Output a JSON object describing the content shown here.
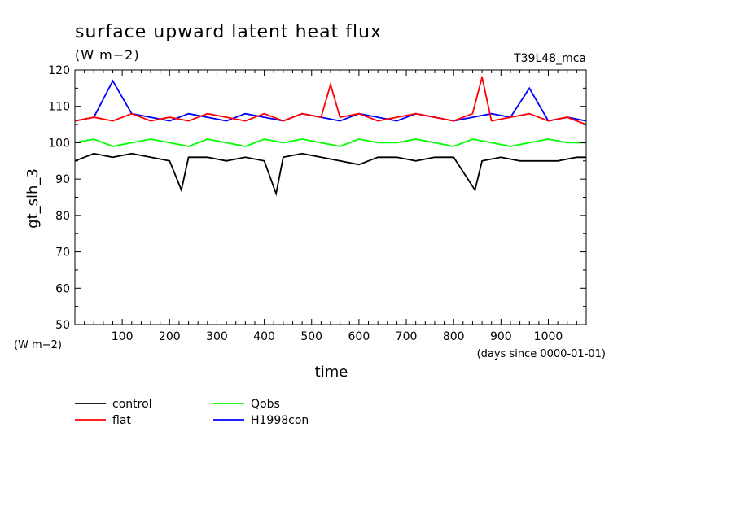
{
  "chart_data": {
    "type": "line",
    "title": "surface upward latent heat flux",
    "units": "(W m−2)",
    "tag": "T39L48_mca",
    "xlabel": "time",
    "xlabel_units": "(days since 0000-01-01)",
    "ylabel": "gt_slh_3",
    "ylabel_units": "(W m−2)",
    "xlim": [
      0,
      1080
    ],
    "ylim": [
      50,
      120
    ],
    "xticks": [
      100,
      200,
      300,
      400,
      500,
      600,
      700,
      800,
      900,
      1000
    ],
    "yticks": [
      50,
      60,
      70,
      80,
      90,
      100,
      110,
      120
    ],
    "grid": false,
    "legend_position": "bottom-left",
    "series": [
      {
        "name": "control",
        "color": "#000000",
        "x": [
          0,
          40,
          80,
          120,
          160,
          200,
          225,
          240,
          280,
          320,
          360,
          400,
          425,
          440,
          480,
          520,
          560,
          600,
          640,
          680,
          720,
          760,
          800,
          845,
          860,
          900,
          940,
          980,
          1020,
          1060,
          1080
        ],
        "y": [
          95,
          97,
          96,
          97,
          96,
          95,
          87,
          96,
          96,
          95,
          96,
          95,
          86,
          96,
          97,
          96,
          95,
          94,
          96,
          96,
          95,
          96,
          96,
          87,
          95,
          96,
          95,
          95,
          95,
          96,
          96
        ]
      },
      {
        "name": "flat",
        "color": "#ff0000",
        "x": [
          0,
          40,
          80,
          120,
          160,
          200,
          240,
          280,
          320,
          360,
          400,
          440,
          480,
          520,
          540,
          560,
          600,
          640,
          680,
          720,
          760,
          800,
          840,
          860,
          880,
          920,
          960,
          1000,
          1040,
          1080
        ],
        "y": [
          106,
          107,
          106,
          108,
          106,
          107,
          106,
          108,
          107,
          106,
          108,
          106,
          108,
          107,
          116,
          107,
          108,
          106,
          107,
          108,
          107,
          106,
          108,
          118,
          106,
          107,
          108,
          106,
          107,
          105
        ]
      },
      {
        "name": "Qobs",
        "color": "#00ff00",
        "x": [
          0,
          40,
          80,
          120,
          160,
          200,
          240,
          280,
          320,
          360,
          400,
          440,
          480,
          520,
          560,
          600,
          640,
          680,
          720,
          760,
          800,
          840,
          880,
          920,
          960,
          1000,
          1040,
          1080
        ],
        "y": [
          100,
          101,
          99,
          100,
          101,
          100,
          99,
          101,
          100,
          99,
          101,
          100,
          101,
          100,
          99,
          101,
          100,
          100,
          101,
          100,
          99,
          101,
          100,
          99,
          100,
          101,
          100,
          100
        ]
      },
      {
        "name": "H1998con",
        "color": "#0000ff",
        "x": [
          0,
          40,
          80,
          120,
          160,
          200,
          240,
          280,
          320,
          360,
          400,
          440,
          480,
          520,
          560,
          600,
          640,
          680,
          720,
          760,
          800,
          840,
          880,
          920,
          960,
          1000,
          1040,
          1080
        ],
        "y": [
          106,
          107,
          117,
          108,
          107,
          106,
          108,
          107,
          106,
          108,
          107,
          106,
          108,
          107,
          106,
          108,
          107,
          106,
          108,
          107,
          106,
          107,
          108,
          107,
          115,
          106,
          107,
          106
        ]
      }
    ]
  }
}
